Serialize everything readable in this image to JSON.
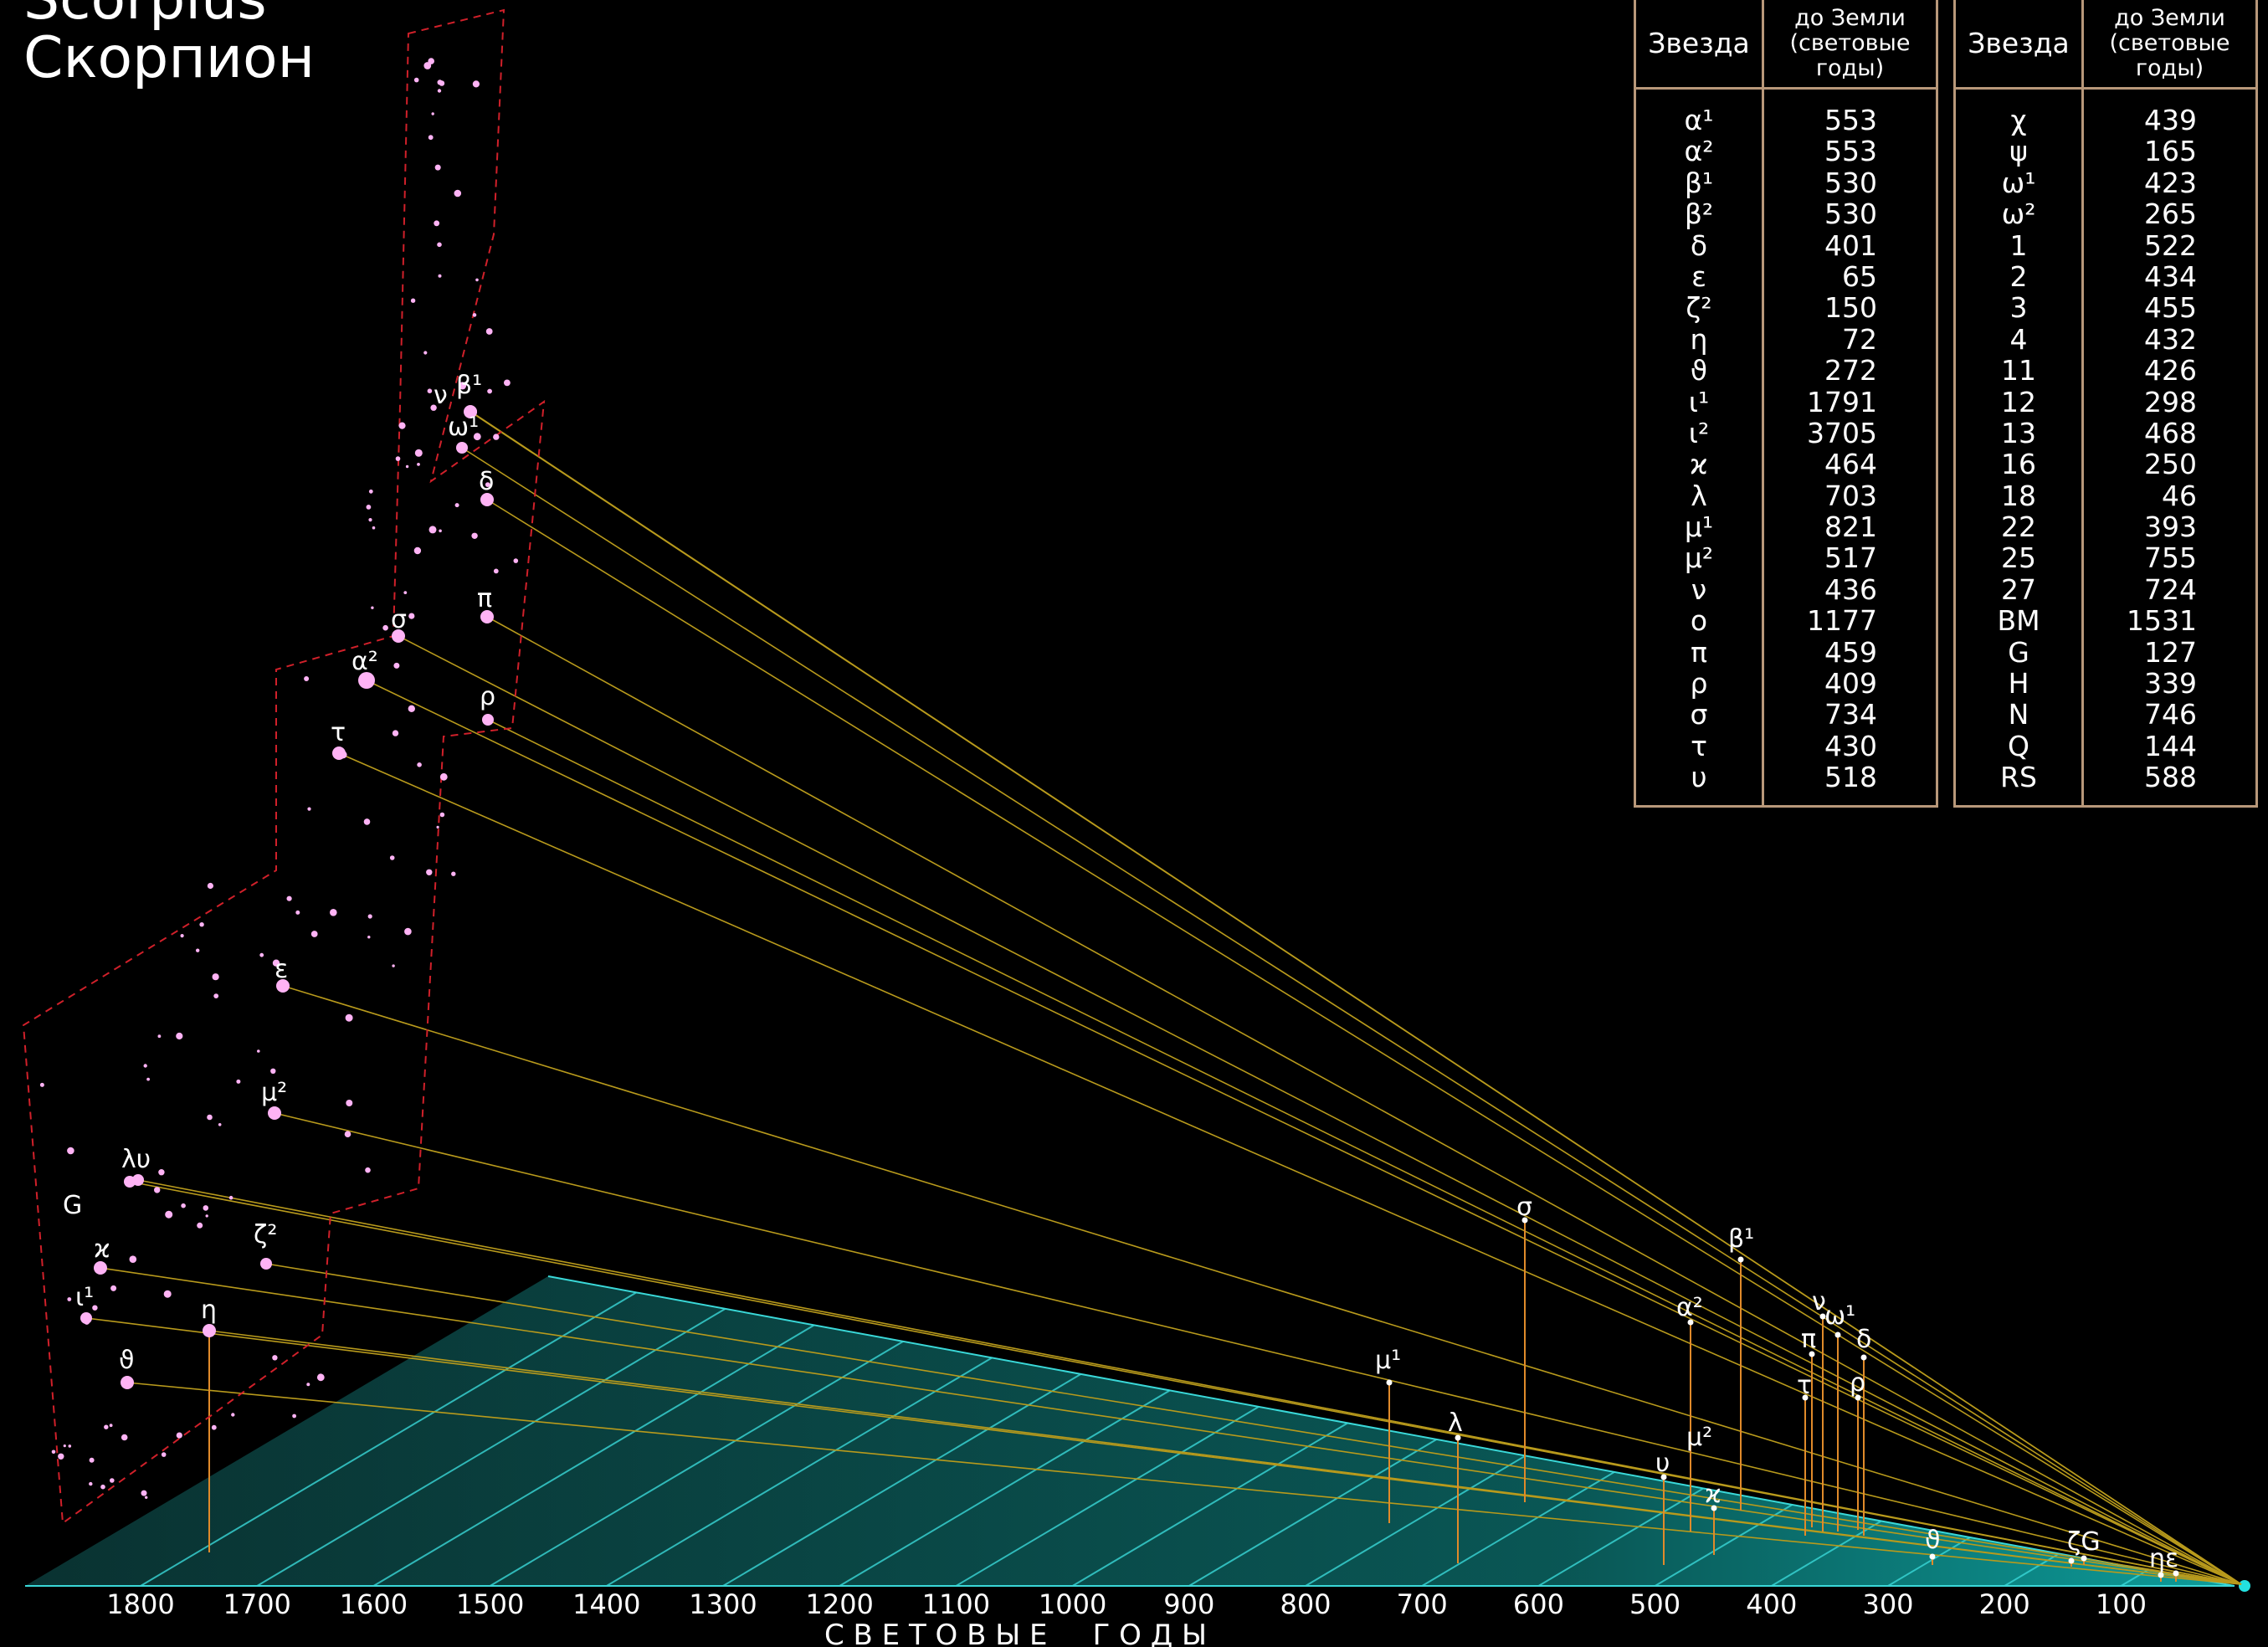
{
  "title": {
    "latin": "Scorpius",
    "russian": "Скорпион"
  },
  "table": {
    "header_star": "Звезда",
    "header_distance": "до Земли (световые годы)",
    "left_rows": [
      {
        "star": "α¹",
        "dist": "553"
      },
      {
        "star": "α²",
        "dist": "553"
      },
      {
        "star": "β¹",
        "dist": "530"
      },
      {
        "star": "β²",
        "dist": "530"
      },
      {
        "star": "δ",
        "dist": "401"
      },
      {
        "star": "ε",
        "dist": "65"
      },
      {
        "star": "ζ²",
        "dist": "150"
      },
      {
        "star": "η",
        "dist": "72"
      },
      {
        "star": "ϑ",
        "dist": "272"
      },
      {
        "star": "ι¹",
        "dist": "1791"
      },
      {
        "star": "ι²",
        "dist": "3705"
      },
      {
        "star": "ϰ",
        "dist": "464"
      },
      {
        "star": "λ",
        "dist": "703"
      },
      {
        "star": "μ¹",
        "dist": "821"
      },
      {
        "star": "μ²",
        "dist": "517"
      },
      {
        "star": "ν",
        "dist": "436"
      },
      {
        "star": "ο",
        "dist": "1177"
      },
      {
        "star": "π",
        "dist": "459"
      },
      {
        "star": "ρ",
        "dist": "409"
      },
      {
        "star": "σ",
        "dist": "734"
      },
      {
        "star": "τ",
        "dist": "430"
      },
      {
        "star": "υ",
        "dist": "518"
      }
    ],
    "right_rows": [
      {
        "star": "χ",
        "dist": "439"
      },
      {
        "star": "ψ",
        "dist": "165"
      },
      {
        "star": "ω¹",
        "dist": "423"
      },
      {
        "star": "ω²",
        "dist": "265"
      },
      {
        "star": "1",
        "dist": "522"
      },
      {
        "star": "2",
        "dist": "434"
      },
      {
        "star": "3",
        "dist": "455"
      },
      {
        "star": "4",
        "dist": "432"
      },
      {
        "star": "11",
        "dist": "426"
      },
      {
        "star": "12",
        "dist": "298"
      },
      {
        "star": "13",
        "dist": "468"
      },
      {
        "star": "16",
        "dist": "250"
      },
      {
        "star": "18",
        "dist": "46"
      },
      {
        "star": "22",
        "dist": "393"
      },
      {
        "star": "25",
        "dist": "755"
      },
      {
        "star": "27",
        "dist": "724"
      },
      {
        "star": "BM",
        "dist": "1531"
      },
      {
        "star": "G",
        "dist": "127"
      },
      {
        "star": "H",
        "dist": "339"
      },
      {
        "star": "N",
        "dist": "746"
      },
      {
        "star": "Q",
        "dist": "144"
      },
      {
        "star": "RS",
        "dist": "588"
      }
    ]
  },
  "axis": {
    "ticks": [
      "1800",
      "1700",
      "1600",
      "1500",
      "1400",
      "1300",
      "1200",
      "1100",
      "1000",
      "900",
      "800",
      "700",
      "600",
      "500",
      "400",
      "300",
      "200",
      "100"
    ],
    "caption": "С В Е Т О В Ы Е     Г О Д Ы"
  },
  "sky_labels": {
    "nu": "ν",
    "beta1": "β¹",
    "omega1": "ω¹",
    "delta": "δ",
    "pi": "π",
    "sigma": "σ",
    "alpha2": "α²",
    "rho": "ρ",
    "tau": "τ",
    "epsilon": "ε",
    "mu2": "μ²",
    "lambda_upsilon": "λυ",
    "G": "G",
    "zeta2": "ζ²",
    "kappa": "ϰ",
    "iota1": "ι¹",
    "eta": "η",
    "theta": "ϑ"
  },
  "depth_labels": {
    "sigma": "σ",
    "beta1": "β¹",
    "nu": "ν",
    "omega1": "ω¹",
    "delta": "δ",
    "alpha2": "α²",
    "pi": "π",
    "tau": "τ",
    "rho": "ρ",
    "mu1": "μ¹",
    "lambda": "λ",
    "mu2": "μ²",
    "upsilon": "υ",
    "kappa": "ϰ",
    "theta": "ϑ",
    "zeta_G": "ζG",
    "eta_epsilon": "ηε"
  },
  "colors": {
    "background": "#000000",
    "star": "#ffb3f5",
    "boundary": "#d0202a",
    "sightline": "#b89a1c",
    "drop_line": "#e08a2a",
    "plane_fill_far": "#0b3b3a",
    "plane_fill_near": "#0fb7b4",
    "plane_grid": "#3ad8d8",
    "table_border": "#b8987a"
  }
}
